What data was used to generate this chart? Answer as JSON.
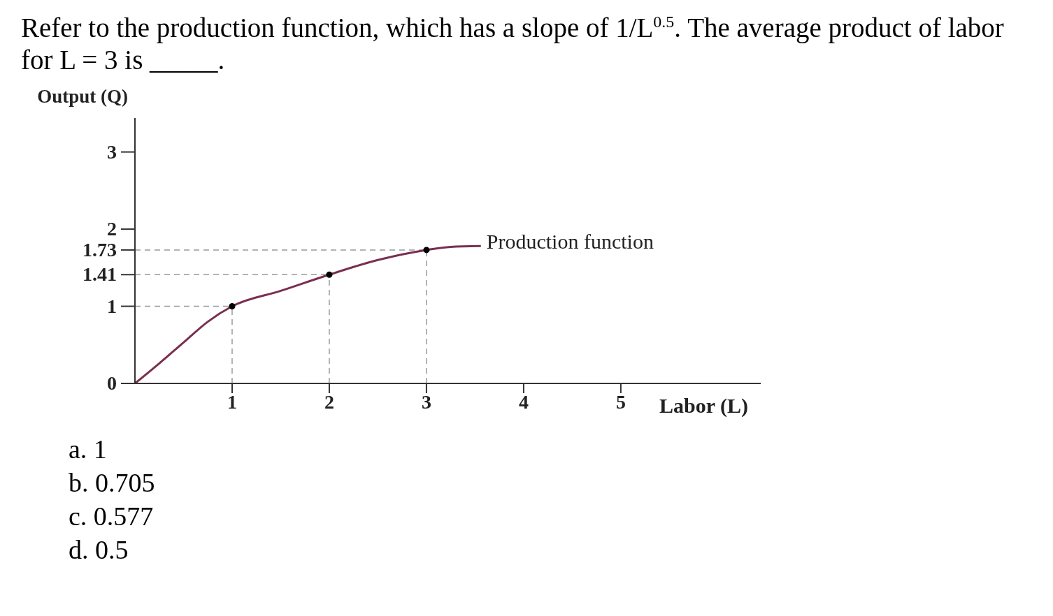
{
  "chart_data": {
    "type": "line",
    "title": "Refer to the production function, which has a slope of 1/L$^{0.5}$. The average product of labor for L = 3 is _____.",
    "xlabel": "Labor (L)",
    "ylabel": "Output (Q)",
    "series": [
      {
        "name": "Production function",
        "color": "#7a2f4f",
        "marker": "none",
        "x": [
          0,
          0.25,
          0.5,
          0.75,
          1,
          1.5,
          2,
          2.5,
          3,
          3.25,
          3.56
        ],
        "values": [
          0,
          0.26,
          0.53,
          0.8,
          1,
          1.2,
          1.41,
          1.6,
          1.73,
          1.77,
          1.78
        ]
      },
      {
        "type": "scatter",
        "color": "#000000",
        "marker": "circle",
        "x": [
          1,
          2,
          3
        ],
        "values": [
          1,
          1.41,
          1.73
        ]
      }
    ],
    "xlim": [
      0,
      6.44
    ],
    "ylim": [
      0,
      3.44
    ],
    "xticks": [
      1,
      2,
      3,
      4,
      5
    ],
    "yticks": [
      0,
      1,
      1.41,
      1.73,
      2,
      3
    ],
    "ref_lines": [
      {
        "axis": "y",
        "value": 1,
        "line_style": "dashed",
        "color": "#999999"
      },
      {
        "axis": "y",
        "value": 1.41,
        "line_style": "dashed",
        "color": "#999999"
      },
      {
        "axis": "y",
        "value": 1.73,
        "line_style": "dashed",
        "color": "#999999"
      },
      {
        "axis": "x",
        "value": 1,
        "line_style": "dashed",
        "color": "#999999"
      },
      {
        "axis": "x",
        "value": 2,
        "line_style": "dashed",
        "color": "#999999"
      },
      {
        "axis": "x",
        "value": 3,
        "line_style": "dashed",
        "color": "#999999"
      }
    ],
    "grid": false,
    "legend": false,
    "annotations": [
      "a.  1",
      "b.  0.705",
      "c.  0.577",
      "d.  0.5"
    ]
  }
}
